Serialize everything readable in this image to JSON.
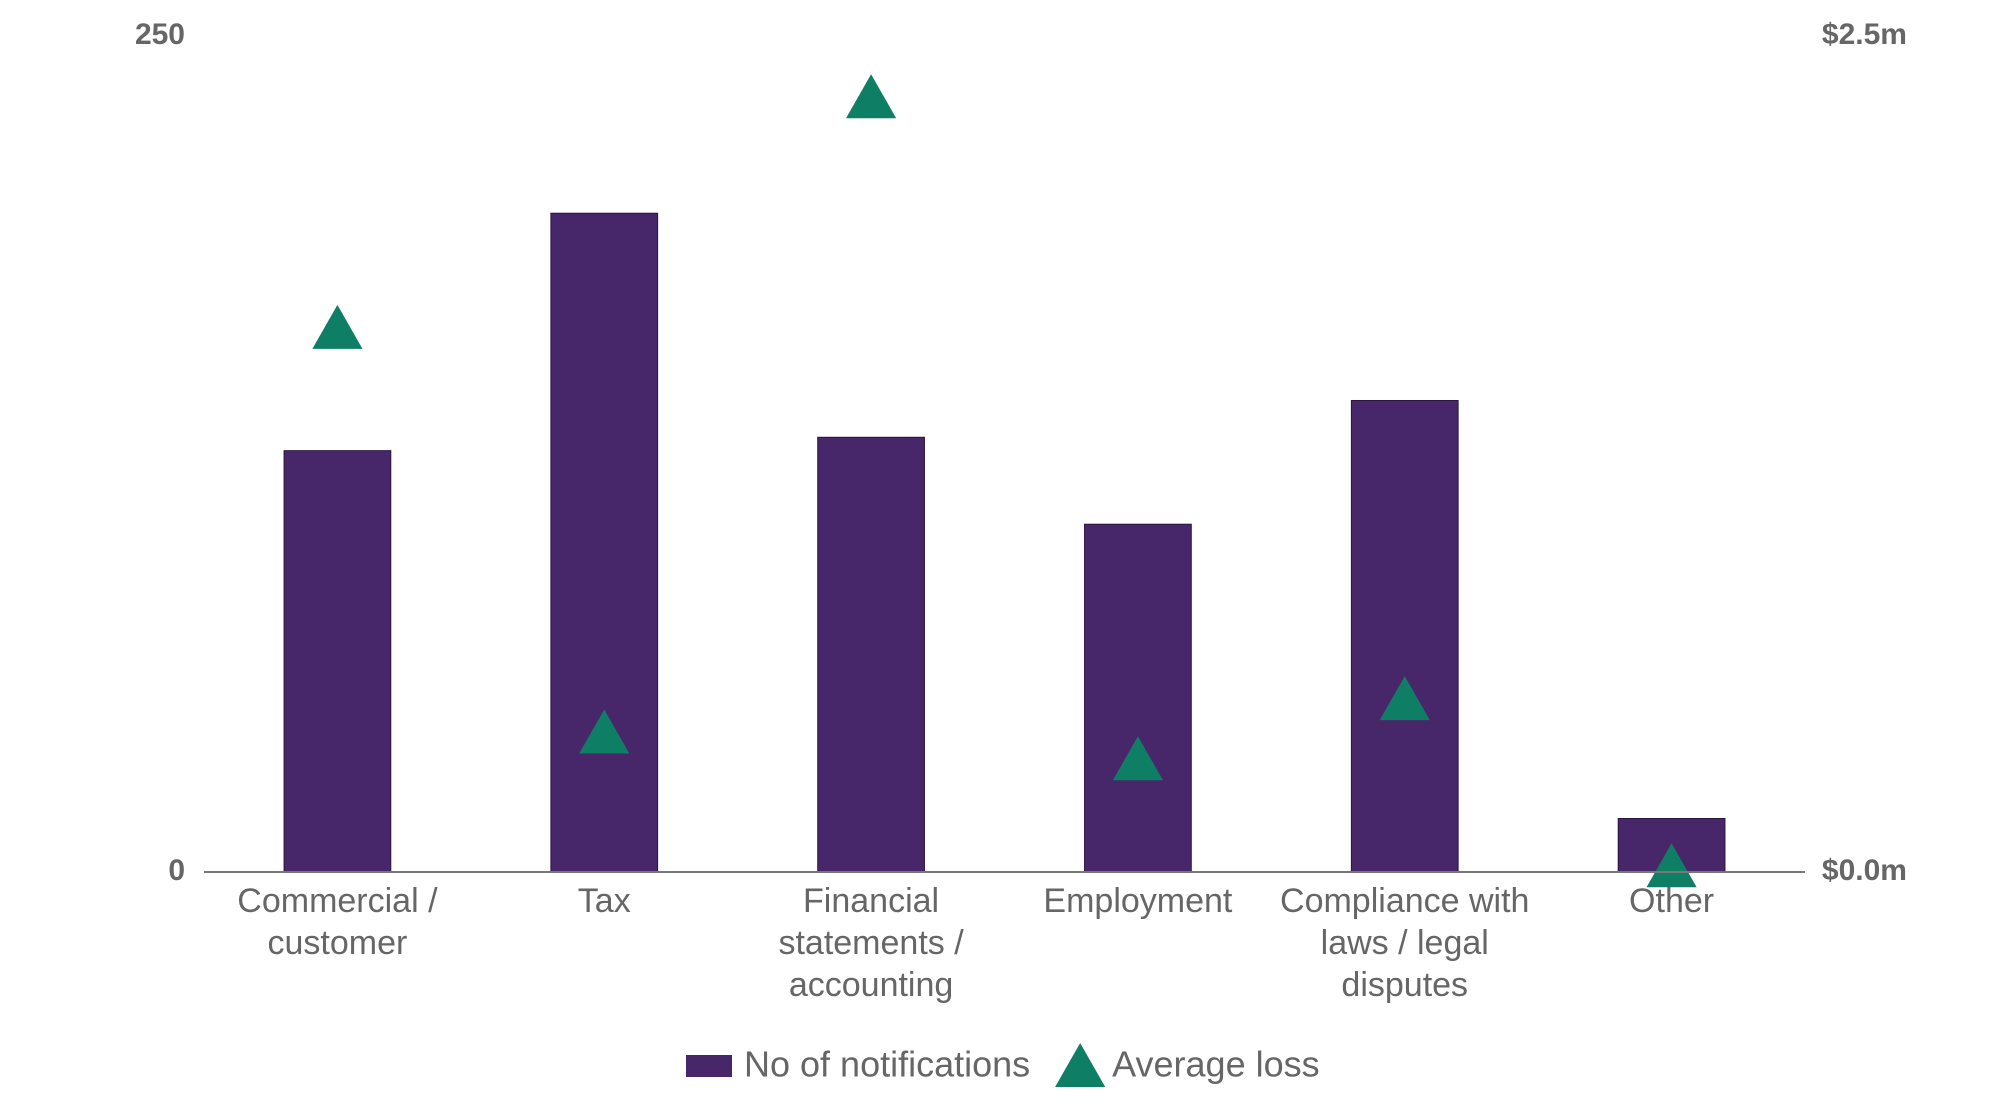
{
  "chart_data": {
    "type": "bar_triangle",
    "categories": [
      "Commercial / customer",
      "Tax",
      "Financial statements / accounting",
      "Employment",
      "Compliance with laws / legal disputes",
      "Other"
    ],
    "series": [
      {
        "name": "No of notifications",
        "color": "#47266a",
        "values": [
          126,
          197,
          130,
          104,
          141,
          16
        ]
      },
      {
        "name": "Average loss",
        "color": "#0e7f64",
        "axis": "y2",
        "values": [
          1.63,
          0.42,
          2.32,
          0.34,
          0.52,
          0.02
        ]
      }
    ],
    "ylim": [
      0,
      250
    ],
    "yticks": [
      0,
      250
    ],
    "y2lim": [
      0,
      2.5
    ],
    "y2ticks": [
      {
        "value": 0,
        "label": "$0.0m"
      },
      {
        "value": 2.5,
        "label": "$2.5m"
      }
    ],
    "legend": "bottom"
  }
}
